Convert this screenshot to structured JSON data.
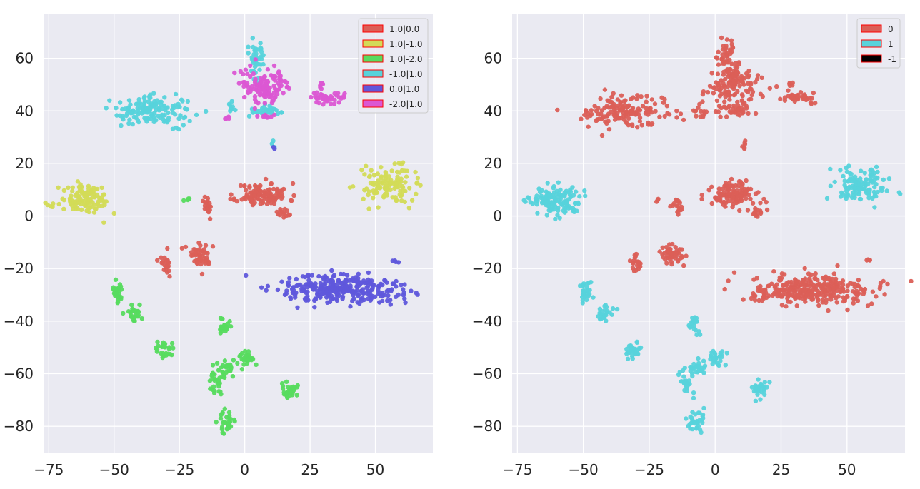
{
  "chart_data": [
    {
      "type": "scatter",
      "xlim": [
        -77,
        72
      ],
      "ylim": [
        -90,
        77
      ],
      "xticks": [
        -75,
        -50,
        -25,
        0,
        25,
        50
      ],
      "yticks": [
        60,
        40,
        20,
        0,
        -20,
        -40,
        -60,
        -80
      ],
      "xtick_labels": [
        "−75",
        "−50",
        "−25",
        "0",
        "25",
        "50"
      ],
      "ytick_labels": [
        "60",
        "40",
        "20",
        "0",
        "−20",
        "−40",
        "−60",
        "−80"
      ],
      "grid": true,
      "legend_position": "top-right",
      "series": [
        {
          "name": "1.0|0.0",
          "color": "#db5f57",
          "clusters": [
            {
              "x": 7,
              "y": 8,
              "rx": 9,
              "ry": 4,
              "n": 120,
              "seed": 11
            },
            {
              "x": -14,
              "y": 4,
              "rx": 2,
              "ry": 3,
              "n": 18,
              "seed": 12
            },
            {
              "x": 15,
              "y": 1,
              "rx": 3,
              "ry": 2,
              "n": 14,
              "seed": 13
            },
            {
              "x": -16,
              "y": -15,
              "rx": 5,
              "ry": 4,
              "n": 50,
              "seed": 14
            },
            {
              "x": -30,
              "y": -18,
              "rx": 2,
              "ry": 4,
              "n": 22,
              "seed": 15
            }
          ]
        },
        {
          "name": "1.0|-1.0",
          "color": "#d3db57",
          "clusters": [
            {
              "x": -61,
              "y": 6,
              "rx": 9,
              "ry": 5,
              "n": 130,
              "seed": 21
            },
            {
              "x": 55,
              "y": 12,
              "rx": 9,
              "ry": 6,
              "n": 120,
              "seed": 22
            }
          ]
        },
        {
          "name": "1.0|-2.0",
          "color": "#57db5f",
          "clusters": [
            {
              "x": -49,
              "y": -29,
              "rx": 2,
              "ry": 4,
              "n": 28,
              "seed": 31
            },
            {
              "x": -42,
              "y": -37,
              "rx": 3,
              "ry": 3,
              "n": 25,
              "seed": 32
            },
            {
              "x": -31,
              "y": -51,
              "rx": 3,
              "ry": 3,
              "n": 28,
              "seed": 33
            },
            {
              "x": -8,
              "y": -42,
              "rx": 2,
              "ry": 3,
              "n": 22,
              "seed": 34
            },
            {
              "x": 1,
              "y": -54,
              "rx": 3,
              "ry": 3,
              "n": 28,
              "seed": 35
            },
            {
              "x": -7,
              "y": -58,
              "rx": 4,
              "ry": 3,
              "n": 28,
              "seed": 36
            },
            {
              "x": -11,
              "y": -64,
              "rx": 2,
              "ry": 4,
              "n": 25,
              "seed": 37
            },
            {
              "x": 17,
              "y": -66,
              "rx": 3,
              "ry": 3,
              "n": 30,
              "seed": 38
            },
            {
              "x": -7,
              "y": -78,
              "rx": 3,
              "ry": 4,
              "n": 32,
              "seed": 39
            },
            {
              "x": -22,
              "y": 6,
              "rx": 1,
              "ry": 1,
              "n": 4,
              "seed": 40
            }
          ]
        },
        {
          "name": "-1.0|1.0",
          "color": "#57d3db",
          "clusters": [
            {
              "x": -35,
              "y": 40,
              "rx": 14,
              "ry": 5,
              "n": 150,
              "seed": 41
            },
            {
              "x": 4,
              "y": 60,
              "rx": 3,
              "ry": 7,
              "n": 45,
              "seed": 42
            },
            {
              "x": 7,
              "y": 40,
              "rx": 6,
              "ry": 2,
              "n": 35,
              "seed": 43
            },
            {
              "x": -5,
              "y": 41,
              "rx": 2,
              "ry": 2,
              "n": 8,
              "seed": 44
            },
            {
              "x": 11,
              "y": 28,
              "rx": 1,
              "ry": 2,
              "n": 4,
              "seed": 45
            }
          ]
        },
        {
          "name": "0.0|1.0",
          "color": "#5f57db",
          "clusters": [
            {
              "x": 37,
              "y": -28,
              "rx": 22,
              "ry": 5,
              "n": 300,
              "seed": 51
            },
            {
              "x": 58,
              "y": -17,
              "rx": 1,
              "ry": 1,
              "n": 4,
              "seed": 52
            },
            {
              "x": 11,
              "y": 26,
              "rx": 0.5,
              "ry": 0.5,
              "n": 2,
              "seed": 53
            }
          ]
        },
        {
          "name": "-2.0|1.0",
          "color": "#db57d3",
          "clusters": [
            {
              "x": 7,
              "y": 50,
              "rx": 9,
              "ry": 7,
              "n": 120,
              "seed": 61
            },
            {
              "x": 32,
              "y": 45,
              "rx": 5,
              "ry": 2,
              "n": 40,
              "seed": 62
            },
            {
              "x": 29,
              "y": 50,
              "rx": 1,
              "ry": 1,
              "n": 5,
              "seed": 63
            },
            {
              "x": 9,
              "y": 38,
              "rx": 3,
              "ry": 1,
              "n": 8,
              "seed": 64
            },
            {
              "x": -7,
              "y": 37,
              "rx": 2,
              "ry": 1,
              "n": 6,
              "seed": 65
            }
          ]
        }
      ]
    },
    {
      "type": "scatter",
      "xlim": [
        -77,
        72
      ],
      "ylim": [
        -90,
        77
      ],
      "xticks": [
        -75,
        -50,
        -25,
        0,
        25,
        50
      ],
      "yticks": [
        60,
        40,
        20,
        0,
        -20,
        -40,
        -60,
        -80
      ],
      "xtick_labels": [
        "−75",
        "−50",
        "−25",
        "0",
        "25",
        "50"
      ],
      "ytick_labels": [
        "60",
        "40",
        "20",
        "0",
        "−20",
        "−40",
        "−60",
        "−80"
      ],
      "grid": true,
      "legend_position": "top-right",
      "series": [
        {
          "name": "0",
          "color": "#db5f57",
          "clusters": [
            {
              "x": 7,
              "y": 8,
              "rx": 9,
              "ry": 4,
              "n": 120,
              "seed": 111
            },
            {
              "x": -14,
              "y": 4,
              "rx": 2,
              "ry": 3,
              "n": 18,
              "seed": 112
            },
            {
              "x": 15,
              "y": 1,
              "rx": 3,
              "ry": 2,
              "n": 14,
              "seed": 113
            },
            {
              "x": -16,
              "y": -15,
              "rx": 5,
              "ry": 4,
              "n": 50,
              "seed": 114
            },
            {
              "x": -30,
              "y": -18,
              "rx": 2,
              "ry": 4,
              "n": 22,
              "seed": 115
            },
            {
              "x": 37,
              "y": -28,
              "rx": 22,
              "ry": 5,
              "n": 300,
              "seed": 116
            },
            {
              "x": 58,
              "y": -17,
              "rx": 1,
              "ry": 1,
              "n": 4,
              "seed": 117
            },
            {
              "x": -35,
              "y": 40,
              "rx": 14,
              "ry": 5,
              "n": 150,
              "seed": 118
            },
            {
              "x": 4,
              "y": 60,
              "rx": 3,
              "ry": 7,
              "n": 45,
              "seed": 119
            },
            {
              "x": 7,
              "y": 40,
              "rx": 6,
              "ry": 2,
              "n": 35,
              "seed": 120
            },
            {
              "x": 7,
              "y": 50,
              "rx": 9,
              "ry": 7,
              "n": 120,
              "seed": 121
            },
            {
              "x": 32,
              "y": 45,
              "rx": 5,
              "ry": 2,
              "n": 40,
              "seed": 122
            },
            {
              "x": 29,
              "y": 50,
              "rx": 1,
              "ry": 1,
              "n": 5,
              "seed": 123
            },
            {
              "x": -5,
              "y": 40,
              "rx": 3,
              "ry": 3,
              "n": 14,
              "seed": 124
            },
            {
              "x": 11,
              "y": 27,
              "rx": 1,
              "ry": 3,
              "n": 6,
              "seed": 125
            },
            {
              "x": -22,
              "y": 6,
              "rx": 1,
              "ry": 1,
              "n": 4,
              "seed": 126
            }
          ]
        },
        {
          "name": "1",
          "color": "#57d3db",
          "clusters": [
            {
              "x": -61,
              "y": 6,
              "rx": 9,
              "ry": 5,
              "n": 130,
              "seed": 131
            },
            {
              "x": 55,
              "y": 12,
              "rx": 9,
              "ry": 6,
              "n": 120,
              "seed": 132
            },
            {
              "x": -49,
              "y": -29,
              "rx": 2,
              "ry": 4,
              "n": 28,
              "seed": 133
            },
            {
              "x": -42,
              "y": -37,
              "rx": 3,
              "ry": 3,
              "n": 25,
              "seed": 134
            },
            {
              "x": -31,
              "y": -51,
              "rx": 3,
              "ry": 3,
              "n": 28,
              "seed": 135
            },
            {
              "x": -8,
              "y": -42,
              "rx": 2,
              "ry": 3,
              "n": 22,
              "seed": 136
            },
            {
              "x": 1,
              "y": -54,
              "rx": 3,
              "ry": 3,
              "n": 28,
              "seed": 137
            },
            {
              "x": -7,
              "y": -58,
              "rx": 4,
              "ry": 3,
              "n": 28,
              "seed": 138
            },
            {
              "x": -11,
              "y": -64,
              "rx": 2,
              "ry": 4,
              "n": 25,
              "seed": 139
            },
            {
              "x": 17,
              "y": -66,
              "rx": 3,
              "ry": 3,
              "n": 30,
              "seed": 140
            },
            {
              "x": -7,
              "y": -78,
              "rx": 3,
              "ry": 4,
              "n": 32,
              "seed": 141
            }
          ]
        },
        {
          "name": "-1",
          "color": "#000000",
          "clusters": []
        }
      ]
    }
  ]
}
